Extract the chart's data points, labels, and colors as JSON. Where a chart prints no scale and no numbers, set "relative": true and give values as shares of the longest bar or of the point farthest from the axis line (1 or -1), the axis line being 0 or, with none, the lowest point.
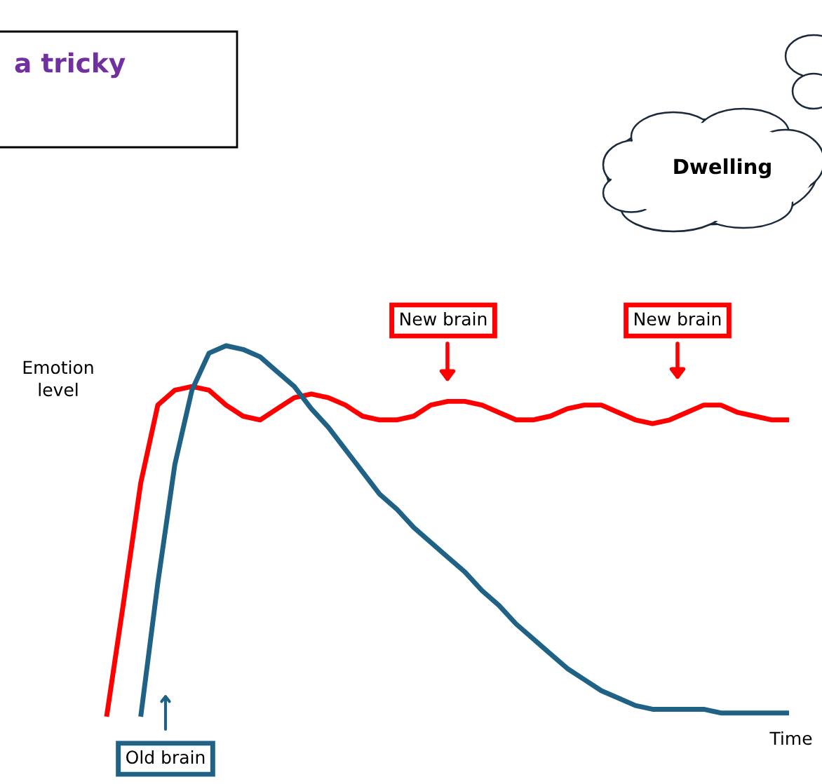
{
  "chart_data": {
    "type": "line",
    "relative": true,
    "marker": "none",
    "line_style": "solid",
    "xlabel": "Time",
    "ylabel": "Emotion level",
    "categories": [
      null,
      null,
      null,
      null,
      null,
      null,
      null,
      null,
      null,
      null,
      null,
      null,
      null,
      null,
      null,
      null,
      null,
      null,
      null,
      null,
      null,
      null,
      null,
      null,
      null,
      null,
      null,
      null,
      null,
      null,
      null,
      null,
      null,
      null,
      null,
      null,
      null,
      null,
      null,
      null,
      null
    ],
    "series": [
      {
        "color": "#ff0000",
        "values": [
          0,
          0.31,
          0.63,
          0.84,
          0.88,
          0.89,
          0.88,
          0.84,
          0.81,
          0.8,
          0.83,
          0.86,
          0.87,
          0.86,
          0.84,
          0.81,
          0.8,
          0.8,
          0.81,
          0.84,
          0.85,
          0.85,
          0.84,
          0.82,
          0.8,
          0.8,
          0.81,
          0.83,
          0.84,
          0.84,
          0.82,
          0.8,
          0.79,
          0.8,
          0.82,
          0.84,
          0.84,
          0.82,
          0.81,
          0.8,
          0.8
        ]
      },
      {
        "color": "#1f6285",
        "values": [
          null,
          null,
          0,
          0.36,
          0.68,
          0.88,
          0.98,
          1,
          0.99,
          0.97,
          0.93,
          0.89,
          0.83,
          0.78,
          0.72,
          0.66,
          0.6,
          0.56,
          0.51,
          0.47,
          0.43,
          0.39,
          0.34,
          0.3,
          0.25,
          0.21,
          0.17,
          0.13,
          0.1,
          0.07,
          0.05,
          0.03,
          0.02,
          0.02,
          0.02,
          0.02,
          0.01,
          0.01,
          0.01,
          0.01,
          0.01
        ]
      }
    ],
    "annotations": [
      "a tricky",
      "Dwelling",
      "New brain",
      "New brain",
      "Old brain"
    ]
  }
}
